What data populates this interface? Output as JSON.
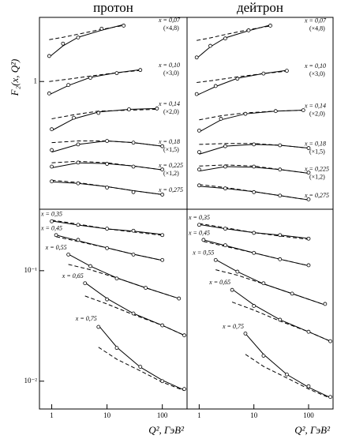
{
  "chart_data": [
    {
      "type": "line",
      "title": "протон",
      "y_label": "F₂(x, Q²)",
      "log_x": true,
      "log_y": true,
      "xlim": [
        0.6,
        280
      ],
      "ylim": [
        0.07,
        3.8
      ],
      "yticks": [
        1
      ],
      "label_side": "right",
      "series": [
        {
          "name": "x = 0,07",
          "scale": "(×4,8)",
          "x": [
            0.9,
            1.6,
            3,
            8,
            20
          ],
          "values": [
            1.7,
            2.2,
            2.5,
            3.0,
            3.2
          ],
          "fit": [
            1.66,
            2.1,
            2.51,
            2.91,
            3.27
          ],
          "fit_dashed": [
            2.39,
            2.51,
            2.68,
            2.96,
            3.21
          ]
        },
        {
          "name": "x = 0,10",
          "scale": "(×3,0)",
          "x": [
            0.9,
            2,
            5,
            15,
            40
          ],
          "values": [
            0.78,
            0.93,
            1.08,
            1.19,
            1.27
          ],
          "fit": [
            0.76,
            0.92,
            1.09,
            1.2,
            1.28
          ],
          "fit_dashed": [
            1.0,
            1.05,
            1.12,
            1.2,
            1.26
          ]
        },
        {
          "name": "x = 0,14",
          "scale": "(×2,0)",
          "x": [
            1,
            2.5,
            7,
            25,
            80
          ],
          "values": [
            0.37,
            0.47,
            0.52,
            0.56,
            0.57
          ],
          "fit": [
            0.36,
            0.46,
            0.53,
            0.56,
            0.57
          ],
          "fit_dashed": [
            0.46,
            0.5,
            0.54,
            0.55,
            0.56
          ]
        },
        {
          "name": "x = 0,18",
          "scale": "(×1,5)",
          "x": [
            1,
            3,
            10,
            30,
            100
          ],
          "values": [
            0.24,
            0.27,
            0.29,
            0.28,
            0.26
          ],
          "fit": [
            0.23,
            0.27,
            0.29,
            0.28,
            0.26
          ],
          "fit_dashed": [
            0.28,
            0.29,
            0.29,
            0.28,
            0.26
          ]
        },
        {
          "name": "x = 0,225",
          "scale": "(×1,2)",
          "x": [
            1,
            3,
            10,
            30,
            100
          ],
          "values": [
            0.17,
            0.185,
            0.18,
            0.17,
            0.16
          ],
          "fit": [
            0.166,
            0.184,
            0.181,
            0.172,
            0.159
          ],
          "fit_dashed": [
            0.184,
            0.19,
            0.184,
            0.172,
            0.159
          ]
        },
        {
          "name": "x = 0,275",
          "x": [
            1,
            3,
            10,
            30,
            100
          ],
          "values": [
            0.125,
            0.12,
            0.11,
            0.1,
            0.095
          ],
          "fit": [
            0.124,
            0.12,
            0.112,
            0.103,
            0.095
          ],
          "fit_dashed": [
            0.128,
            0.122,
            0.112,
            0.103,
            0.095
          ]
        }
      ]
    },
    {
      "type": "line",
      "title": "дейтрон",
      "log_x": true,
      "log_y": true,
      "xlim": [
        0.6,
        280
      ],
      "ylim": [
        0.07,
        3.8
      ],
      "label_side": "right",
      "series": [
        {
          "name": "x = 0,07",
          "scale": "(×4,8)",
          "x": [
            0.9,
            1.6,
            3,
            8,
            20
          ],
          "values": [
            1.65,
            2.1,
            2.45,
            2.9,
            3.2
          ],
          "fit": [
            1.62,
            2.06,
            2.48,
            2.88,
            3.24
          ],
          "fit_dashed": [
            2.35,
            2.48,
            2.66,
            2.94,
            3.18
          ]
        },
        {
          "name": "x = 0,10",
          "scale": "(×3,0)",
          "x": [
            0.9,
            2,
            5,
            15,
            40
          ],
          "values": [
            0.77,
            0.91,
            1.06,
            1.18,
            1.25
          ],
          "fit": [
            0.75,
            0.9,
            1.07,
            1.18,
            1.26
          ],
          "fit_dashed": [
            0.98,
            1.03,
            1.1,
            1.18,
            1.24
          ]
        },
        {
          "name": "x = 0,14",
          "scale": "(×2,0)",
          "x": [
            1,
            2.5,
            7,
            25,
            80
          ],
          "values": [
            0.36,
            0.46,
            0.51,
            0.54,
            0.55
          ],
          "fit": [
            0.35,
            0.45,
            0.51,
            0.54,
            0.55
          ],
          "fit_dashed": [
            0.45,
            0.49,
            0.52,
            0.54,
            0.55
          ]
        },
        {
          "name": "x = 0,18",
          "scale": "(×1,5)",
          "x": [
            1,
            3,
            10,
            30,
            100
          ],
          "values": [
            0.23,
            0.26,
            0.27,
            0.265,
            0.25
          ],
          "fit": [
            0.22,
            0.26,
            0.27,
            0.265,
            0.25
          ],
          "fit_dashed": [
            0.27,
            0.275,
            0.275,
            0.265,
            0.25
          ]
        },
        {
          "name": "x = 0,225",
          "scale": "(×1,2)",
          "x": [
            1,
            3,
            10,
            30,
            100
          ],
          "values": [
            0.16,
            0.17,
            0.17,
            0.16,
            0.15
          ],
          "fit": [
            0.155,
            0.17,
            0.168,
            0.16,
            0.148
          ],
          "fit_dashed": [
            0.172,
            0.176,
            0.172,
            0.16,
            0.148
          ]
        },
        {
          "name": "x = 0,275",
          "x": [
            1,
            3,
            10,
            30,
            100
          ],
          "values": [
            0.115,
            0.108,
            0.1,
            0.093,
            0.086
          ],
          "fit": [
            0.113,
            0.108,
            0.101,
            0.093,
            0.085
          ],
          "fit_dashed": [
            0.117,
            0.11,
            0.101,
            0.093,
            0.085
          ]
        }
      ]
    },
    {
      "type": "line",
      "x_label": "Q², ГэВ²",
      "log_x": true,
      "log_y": true,
      "xlim": [
        0.6,
        280
      ],
      "ylim": [
        0.0056,
        0.36
      ],
      "xticks": [
        1,
        10,
        100
      ],
      "yticks": [
        {
          "value": 0.1,
          "label": "10⁻¹"
        },
        {
          "value": 0.01,
          "label": "10⁻²"
        }
      ],
      "label_side": "left",
      "series": [
        {
          "name": "x = 0,35",
          "x": [
            1,
            3,
            10,
            30,
            100
          ],
          "values": [
            0.28,
            0.26,
            0.24,
            0.23,
            0.21
          ],
          "fit": [
            0.282,
            0.259,
            0.239,
            0.228,
            0.213
          ],
          "fit_dashed": [
            0.287,
            0.264,
            0.239,
            0.224,
            0.209
          ]
        },
        {
          "name": "x = 0,45",
          "x": [
            1.2,
            3,
            10,
            30,
            100
          ],
          "values": [
            0.21,
            0.19,
            0.16,
            0.14,
            0.125
          ],
          "fit": [
            0.21,
            0.187,
            0.161,
            0.141,
            0.124
          ],
          "fit_dashed": [
            0.203,
            0.184,
            0.161,
            0.141,
            0.124
          ]
        },
        {
          "name": "x = 0,55",
          "x": [
            2,
            5,
            15,
            50,
            200
          ],
          "values": [
            0.14,
            0.11,
            0.085,
            0.07,
            0.056
          ],
          "fit": [
            0.141,
            0.11,
            0.086,
            0.07,
            0.056
          ],
          "fit_dashed": [
            0.114,
            0.102,
            0.086,
            0.07,
            0.056
          ]
        },
        {
          "name": "x = 0,65",
          "x": [
            4,
            10,
            30,
            100,
            250
          ],
          "values": [
            0.077,
            0.055,
            0.041,
            0.032,
            0.026
          ],
          "fit": [
            0.078,
            0.056,
            0.041,
            0.032,
            0.026
          ],
          "fit_dashed": [
            0.059,
            0.05,
            0.04,
            0.032,
            0.026
          ]
        },
        {
          "name": "x = 0,75",
          "x": [
            7,
            15,
            40,
            100,
            250
          ],
          "values": [
            0.031,
            0.02,
            0.0135,
            0.01,
            0.0085
          ],
          "fit": [
            0.032,
            0.0203,
            0.0134,
            0.0102,
            0.0083
          ],
          "fit_dashed": [
            0.0203,
            0.0158,
            0.0124,
            0.0098,
            0.0082
          ]
        }
      ]
    },
    {
      "type": "line",
      "x_label": "Q², ГэВ²",
      "log_x": true,
      "log_y": true,
      "xlim": [
        0.6,
        280
      ],
      "ylim": [
        0.0056,
        0.36
      ],
      "xticks": [
        1,
        10,
        100
      ],
      "label_side": "left",
      "series": [
        {
          "name": "x = 0,35",
          "x": [
            1,
            3,
            10,
            30,
            100
          ],
          "values": [
            0.26,
            0.24,
            0.22,
            0.21,
            0.195
          ],
          "fit": [
            0.262,
            0.24,
            0.221,
            0.21,
            0.196
          ],
          "fit_dashed": [
            0.267,
            0.245,
            0.221,
            0.206,
            0.192
          ]
        },
        {
          "name": "x = 0,45",
          "x": [
            1.2,
            3,
            10,
            30,
            100
          ],
          "values": [
            0.19,
            0.17,
            0.145,
            0.127,
            0.112
          ],
          "fit": [
            0.19,
            0.169,
            0.145,
            0.127,
            0.111
          ],
          "fit_dashed": [
            0.184,
            0.166,
            0.145,
            0.127,
            0.111
          ]
        },
        {
          "name": "x = 0,55",
          "x": [
            2,
            5,
            15,
            50,
            200
          ],
          "values": [
            0.125,
            0.098,
            0.077,
            0.062,
            0.05
          ],
          "fit": [
            0.126,
            0.098,
            0.076,
            0.062,
            0.049
          ],
          "fit_dashed": [
            0.102,
            0.091,
            0.076,
            0.062,
            0.049
          ]
        },
        {
          "name": "x = 0,65",
          "x": [
            4,
            10,
            30,
            100,
            250
          ],
          "values": [
            0.067,
            0.048,
            0.036,
            0.028,
            0.023
          ],
          "fit": [
            0.068,
            0.049,
            0.036,
            0.028,
            0.023
          ],
          "fit_dashed": [
            0.052,
            0.044,
            0.035,
            0.028,
            0.023
          ]
        },
        {
          "name": "x = 0,75",
          "x": [
            7,
            15,
            40,
            100,
            250
          ],
          "values": [
            0.027,
            0.017,
            0.0115,
            0.009,
            0.0072
          ],
          "fit": [
            0.027,
            0.0175,
            0.0115,
            0.0088,
            0.0071
          ],
          "fit_dashed": [
            0.0175,
            0.0136,
            0.0107,
            0.0085,
            0.007
          ]
        }
      ]
    }
  ]
}
